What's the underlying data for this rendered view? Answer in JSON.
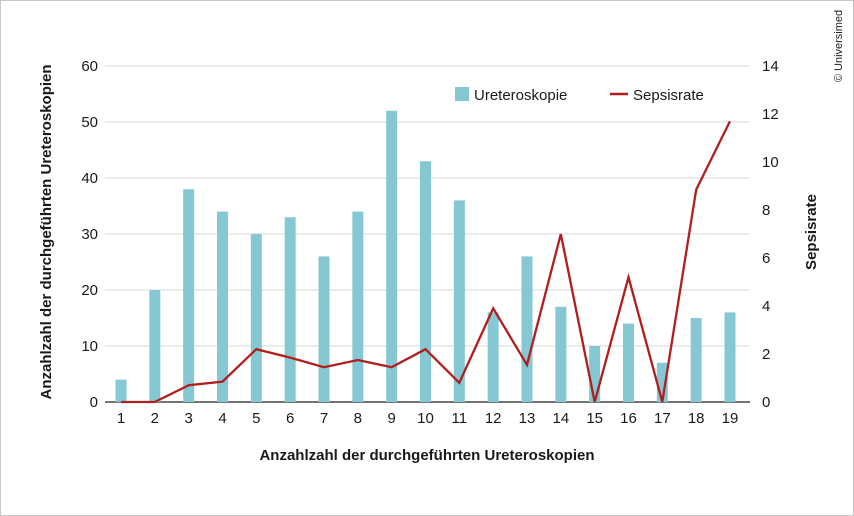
{
  "copyright": "© Universimed",
  "chart_data": {
    "type": "bar",
    "title": "",
    "xlabel": "Anzahlzahl der durchgeführten Ureteroskopien",
    "ylabel_left": "Anzahlzahl der durchgeführten Ureteroskopien",
    "ylabel_right": "Sepsisrate",
    "categories": [
      "1",
      "2",
      "3",
      "4",
      "5",
      "6",
      "7",
      "8",
      "9",
      "10",
      "11",
      "12",
      "13",
      "14",
      "15",
      "16",
      "17",
      "18",
      "19"
    ],
    "ylim_left": [
      0,
      60
    ],
    "yticks_left": [
      "0",
      "10",
      "20",
      "30",
      "40",
      "50",
      "60"
    ],
    "ylim_right": [
      0,
      14
    ],
    "yticks_right": [
      "0",
      "2",
      "4",
      "6",
      "8",
      "10",
      "12",
      "14"
    ],
    "grid": true,
    "legend_position": "top-right",
    "series": [
      {
        "name": "Ureteroskopie",
        "type": "bar",
        "axis": "left",
        "color": "#85c8d3",
        "values": [
          4,
          20,
          38,
          34,
          30,
          33,
          26,
          34,
          52,
          43,
          36,
          16,
          26,
          17,
          10,
          14,
          7,
          15,
          16
        ]
      },
      {
        "name": "Sepsisrate",
        "type": "line",
        "axis": "right",
        "color": "#b01e1e",
        "values": [
          0,
          0,
          0.7,
          0.85,
          2.2,
          1.85,
          1.45,
          1.75,
          1.45,
          2.2,
          0.8,
          3.9,
          1.55,
          7.0,
          0,
          5.2,
          0,
          8.85,
          11.7
        ]
      }
    ]
  }
}
